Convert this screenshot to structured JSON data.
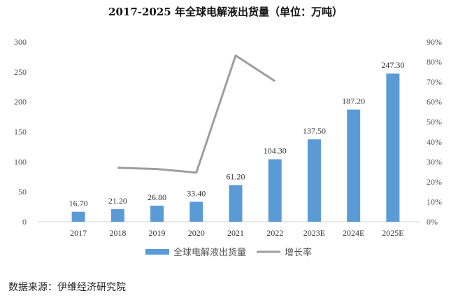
{
  "chart_data": {
    "type": "bar",
    "title": "2017-2025 年全球电解液出货量（单位：万吨）",
    "categories": [
      "2017",
      "2018",
      "2019",
      "2020",
      "2021",
      "2022",
      "2023E",
      "2024E",
      "2025E"
    ],
    "series": [
      {
        "name": "全球电解液出货量",
        "type": "bar",
        "axis": "left",
        "values": [
          16.7,
          21.2,
          26.8,
          33.4,
          61.2,
          104.3,
          137.5,
          187.2,
          247.3
        ],
        "labels": [
          "16.70",
          "21.20",
          "26.80",
          "33.40",
          "61.20",
          "104.30",
          "137.50",
          "187.20",
          "247.30"
        ],
        "color": "#5b9bd5"
      },
      {
        "name": "增长率",
        "type": "line",
        "axis": "right",
        "values": [
          null,
          27.0,
          26.4,
          24.6,
          83.2,
          70.4,
          null,
          null,
          null
        ],
        "color": "#9e9e9e"
      }
    ],
    "y_left": {
      "lim": [
        0,
        300
      ],
      "ticks": [
        "0",
        "50",
        "100",
        "150",
        "200",
        "250",
        "300"
      ]
    },
    "y_right": {
      "lim": [
        0,
        90
      ],
      "ticks": [
        "0%",
        "10%",
        "20%",
        "30%",
        "40%",
        "50%",
        "60%",
        "70%",
        "80%",
        "90%"
      ]
    },
    "grid": false,
    "legend_position": "bottom"
  },
  "source_text": "数据来源：伊维经济研究院"
}
